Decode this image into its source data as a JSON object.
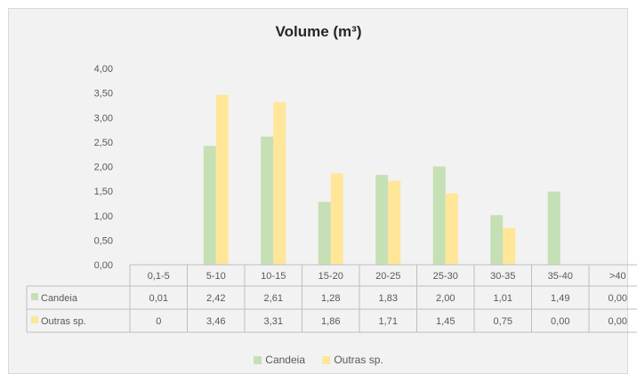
{
  "chart_data": {
    "type": "bar",
    "title": "Volume (m³)",
    "xlabel": "",
    "ylabel": "",
    "ylim": [
      0,
      4
    ],
    "yticks": [
      "0,00",
      "0,50",
      "1,00",
      "1,50",
      "2,00",
      "2,50",
      "3,00",
      "3,50",
      "4,00"
    ],
    "categories": [
      "0,1-5",
      "5-10",
      "10-15",
      "15-20",
      "20-25",
      "25-30",
      "30-35",
      "35-40",
      ">40"
    ],
    "series": [
      {
        "name": "Candeia",
        "color": "#c5e0b4",
        "values": [
          0.01,
          2.42,
          2.61,
          1.28,
          1.83,
          2.0,
          1.01,
          1.49,
          0.0
        ],
        "labels": [
          "0,01",
          "2,42",
          "2,61",
          "1,28",
          "1,83",
          "2,00",
          "1,01",
          "1,49",
          "0,00"
        ]
      },
      {
        "name": "Outras sp.",
        "color": "#ffe699",
        "values": [
          0,
          3.46,
          3.31,
          1.86,
          1.71,
          1.45,
          0.75,
          0.0,
          0.0
        ],
        "labels": [
          "0",
          "3,46",
          "3,31",
          "1,86",
          "1,71",
          "1,45",
          "0,75",
          "0,00",
          "0,00"
        ]
      }
    ],
    "grid": false,
    "legend_position": "bottom",
    "data_table": true
  }
}
